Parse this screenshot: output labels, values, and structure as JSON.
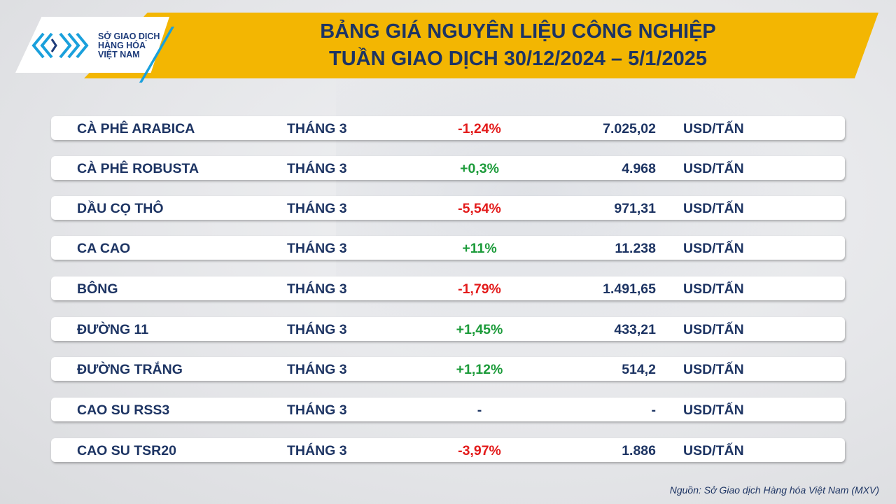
{
  "header": {
    "org_line_1": "SỞ GIAO DỊCH",
    "org_line_2": "HÀNG HÓA",
    "org_line_3": "VIỆT NAM",
    "title_line_1": "BẢNG GIÁ NGUYÊN LIỆU CÔNG NGHIỆP",
    "title_line_2": "TUẦN GIAO DỊCH 30/12/2024 – 5/1/2025"
  },
  "colors": {
    "accent_yellow": "#f3b602",
    "navy": "#1d3463",
    "negative": "#e31b1b",
    "positive": "#1c9b3a",
    "logo_blue": "#1aa0dc"
  },
  "rows": [
    {
      "name": "CÀ PHÊ ARABICA",
      "month": "THÁNG 3",
      "change": "-1,24%",
      "direction": "neg",
      "price": "7.025,02",
      "unit": "USD/TẤN"
    },
    {
      "name": "CÀ PHÊ ROBUSTA",
      "month": "THÁNG 3",
      "change": "+0,3%",
      "direction": "pos",
      "price": "4.968",
      "unit": "USD/TẤN"
    },
    {
      "name": "DẦU CỌ THÔ",
      "month": "THÁNG 3",
      "change": "-5,54%",
      "direction": "neg",
      "price": "971,31",
      "unit": "USD/TẤN"
    },
    {
      "name": "CA CAO",
      "month": "THÁNG 3",
      "change": "+11%",
      "direction": "pos",
      "price": "11.238",
      "unit": "USD/TẤN"
    },
    {
      "name": "BÔNG",
      "month": "THÁNG 3",
      "change": "-1,79%",
      "direction": "neg",
      "price": "1.491,65",
      "unit": "USD/TẤN"
    },
    {
      "name": "ĐƯỜNG 11",
      "month": "THÁNG 3",
      "change": "+1,45%",
      "direction": "pos",
      "price": "433,21",
      "unit": "USD/TẤN"
    },
    {
      "name": "ĐƯỜNG TRẮNG",
      "month": "THÁNG 3",
      "change": "+1,12%",
      "direction": "pos",
      "price": "514,2",
      "unit": "USD/TẤN"
    },
    {
      "name": "CAO SU RSS3",
      "month": "THÁNG 3",
      "change": "-",
      "direction": "flat",
      "price": "-",
      "unit": "USD/TẤN"
    },
    {
      "name": "CAO SU TSR20",
      "month": "THÁNG 3",
      "change": "-3,97%",
      "direction": "neg",
      "price": "1.886",
      "unit": "USD/TẤN"
    }
  ],
  "footer": {
    "source": "Nguồn: Sở Giao dịch Hàng hóa Việt Nam (MXV)"
  }
}
